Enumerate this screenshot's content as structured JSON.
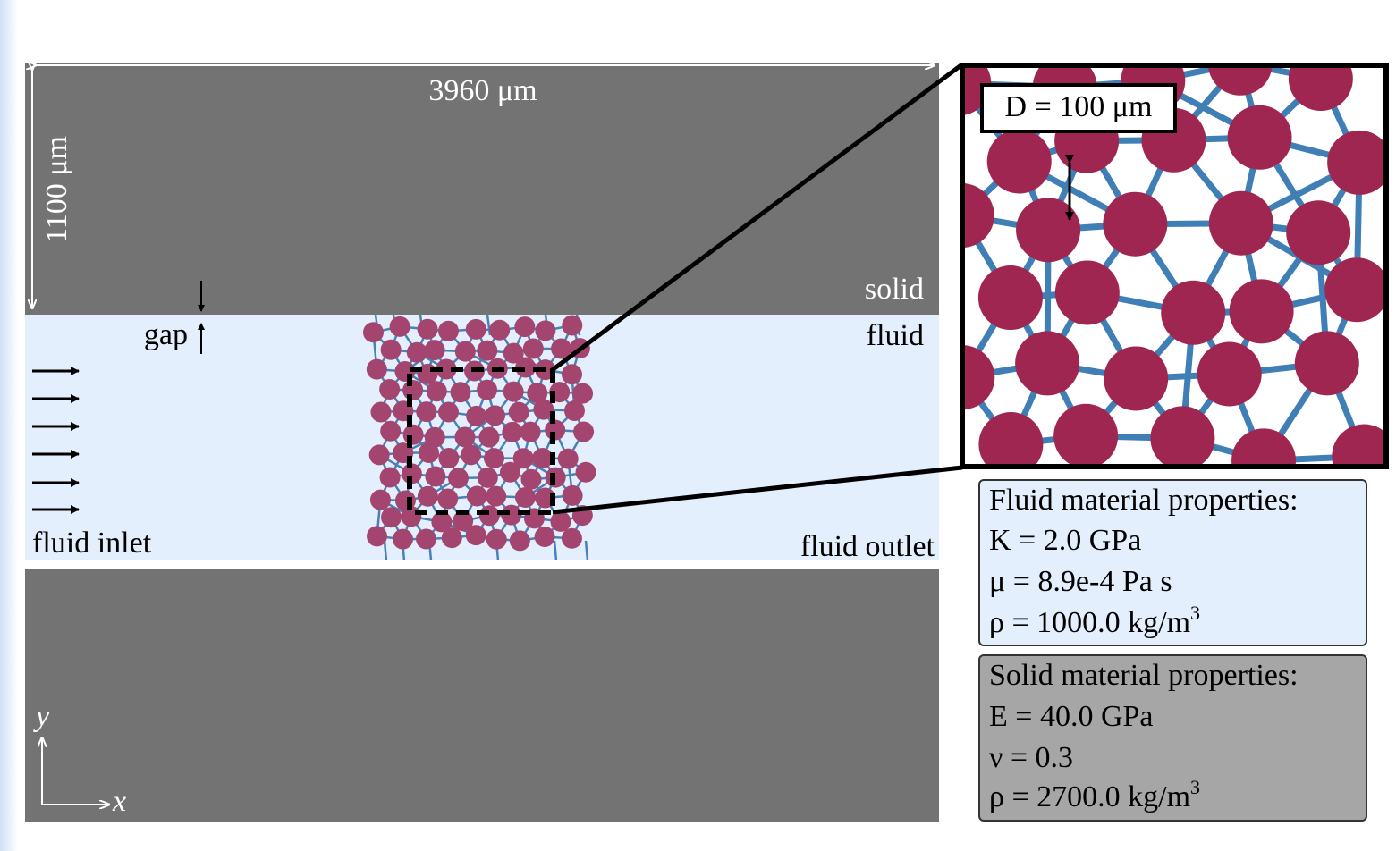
{
  "dimensions": {
    "width_label": "3960 μm",
    "height_label": "1100 μm"
  },
  "labels": {
    "solid": "solid",
    "fluid": "fluid",
    "gap": "gap",
    "fluid_inlet": "fluid inlet",
    "fluid_outlet": "fluid outlet"
  },
  "zoom": {
    "diameter_label": "D = 100 μm"
  },
  "fluid_properties": {
    "title": "Fluid material properties:",
    "bulk_modulus": "K = 2.0 GPa",
    "viscosity": "μ = 8.9e-4 Pa s",
    "density": {
      "text": "ρ = 1000.0 kg/m",
      "exponent": "3"
    }
  },
  "solid_properties": {
    "title": "Solid material properties:",
    "youngs_modulus": "E = 40.0 GPa",
    "poisson_ratio": "ν = 0.3",
    "density": {
      "text": "ρ = 2700.0 kg/m",
      "exponent": "3"
    }
  },
  "axes": {
    "x": "x",
    "y": "y"
  }
}
